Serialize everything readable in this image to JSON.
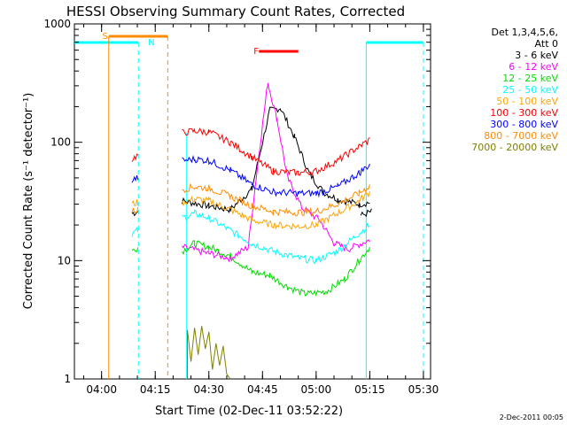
{
  "chart_data": {
    "type": "line",
    "title": "HESSI Observing Summary Count Rates, Corrected",
    "xlabel": "Start Time (02-Dec-11 03:52:22)",
    "ylabel": "Corrected Count Rate (s⁻¹ detector⁻¹)",
    "y_scale": "log",
    "ylim": [
      1,
      1000
    ],
    "y_ticks": [
      {
        "v": 1,
        "label": "1"
      },
      {
        "v": 10,
        "label": "10"
      },
      {
        "v": 100,
        "label": "100"
      },
      {
        "v": 1000,
        "label": "1000"
      }
    ],
    "xlim_min": [
      232.4,
      332
    ],
    "x_ticks": [
      {
        "v": 240,
        "label": "04:00"
      },
      {
        "v": 255,
        "label": "04:15"
      },
      {
        "v": 270,
        "label": "04:30"
      },
      {
        "v": 285,
        "label": "04:45"
      },
      {
        "v": 300,
        "label": "05:00"
      },
      {
        "v": 315,
        "label": "05:15"
      },
      {
        "v": 330,
        "label": "05:30"
      }
    ],
    "legend_header": [
      "Det 1,3,4,5,6,",
      "Att 0"
    ],
    "series": [
      {
        "name": "3 - 6 keV",
        "color": "#000000",
        "segments": [
          [
            [
              248.5,
              25
            ],
            [
              250.2,
              26
            ]
          ],
          [
            [
              262.5,
              32
            ],
            [
              270,
              29
            ],
            [
              276,
              27
            ],
            [
              282,
              40
            ],
            [
              287,
              185
            ],
            [
              290,
              195
            ],
            [
              294,
              110
            ],
            [
              298,
              55
            ],
            [
              302,
              38
            ],
            [
              306,
              33
            ],
            [
              312,
              30
            ],
            [
              315,
              31
            ]
          ],
          [
            [
              312.5,
              24
            ],
            [
              315.5,
              26
            ]
          ]
        ]
      },
      {
        "name": "6 - 12 keV",
        "color": "#ff00ff",
        "segments": [
          [
            [
              262.5,
              13
            ],
            [
              270,
              11.5
            ],
            [
              276,
              10.5
            ],
            [
              281,
              13
            ],
            [
              284,
              80
            ],
            [
              286.5,
              320
            ],
            [
              289,
              160
            ],
            [
              292,
              50
            ],
            [
              296,
              28
            ],
            [
              301,
              22
            ],
            [
              305,
              14
            ],
            [
              309,
              12.5
            ],
            [
              315,
              15
            ]
          ]
        ]
      },
      {
        "name": "12 - 25 keV",
        "color": "#00dd00",
        "segments": [
          [
            [
              248.5,
              12
            ],
            [
              250.2,
              13
            ]
          ],
          [
            [
              262.5,
              12
            ],
            [
              266,
              14
            ],
            [
              270,
              13
            ],
            [
              276,
              11
            ],
            [
              282,
              8
            ],
            [
              287,
              7.5
            ],
            [
              292,
              6
            ],
            [
              297,
              5.2
            ],
            [
              303,
              5.5
            ],
            [
              308,
              7
            ],
            [
              312,
              10
            ],
            [
              315,
              13
            ]
          ]
        ]
      },
      {
        "name": "25 - 50 keV",
        "color": "#00ffff",
        "segments": [
          [
            [
              248.5,
              17
            ],
            [
              250.2,
              18
            ]
          ],
          [
            [
              262.5,
              23
            ],
            [
              266,
              25
            ],
            [
              270,
              23
            ],
            [
              276,
              18
            ],
            [
              282,
              14
            ],
            [
              288,
              12
            ],
            [
              295,
              10.5
            ],
            [
              300,
              10
            ],
            [
              306,
              12
            ],
            [
              312,
              17
            ],
            [
              315,
              20
            ]
          ]
        ]
      },
      {
        "name": "50 - 100 keV",
        "color": "#ffa500",
        "segments": [
          [
            [
              248.5,
              30
            ],
            [
              250.2,
              31
            ]
          ],
          [
            [
              262.5,
              31
            ],
            [
              266,
              33
            ],
            [
              270,
              32
            ],
            [
              276,
              27
            ],
            [
              282,
              22
            ],
            [
              288,
              20
            ],
            [
              295,
              19.5
            ],
            [
              300,
              20
            ],
            [
              306,
              25
            ],
            [
              312,
              32
            ],
            [
              315,
              38
            ]
          ]
        ]
      },
      {
        "name": "100 - 300 keV",
        "color": "#ff0000",
        "segments": [
          [
            [
              248.5,
              72
            ],
            [
              250.2,
              78
            ]
          ],
          [
            [
              262.5,
              120
            ],
            [
              266,
              125
            ],
            [
              270,
              122
            ],
            [
              276,
              100
            ],
            [
              282,
              75
            ],
            [
              288,
              57
            ],
            [
              295,
              55
            ],
            [
              300,
              57
            ],
            [
              306,
              70
            ],
            [
              312,
              92
            ],
            [
              315,
              105
            ]
          ]
        ]
      },
      {
        "name": "300 - 800 keV",
        "color": "#0000ff",
        "segments": [
          [
            [
              248.5,
              48
            ],
            [
              250.2,
              50
            ]
          ],
          [
            [
              262.5,
              70
            ],
            [
              266,
              72
            ],
            [
              270,
              70
            ],
            [
              276,
              58
            ],
            [
              282,
              44
            ],
            [
              288,
              38
            ],
            [
              295,
              37
            ],
            [
              300,
              37
            ],
            [
              306,
              42
            ],
            [
              312,
              55
            ],
            [
              315,
              65
            ]
          ]
        ]
      },
      {
        "name": "800 - 7000 keV",
        "color": "#ff8c00",
        "segments": [
          [
            [
              248.5,
              26
            ],
            [
              250.2,
              27
            ]
          ],
          [
            [
              262.5,
              40
            ],
            [
              266,
              42
            ],
            [
              270,
              41
            ],
            [
              276,
              35
            ],
            [
              282,
              29
            ],
            [
              288,
              26
            ],
            [
              295,
              25.5
            ],
            [
              300,
              26
            ],
            [
              306,
              30
            ],
            [
              312,
              37
            ],
            [
              315,
              43
            ]
          ]
        ]
      },
      {
        "name": "7000 - 20000 keV",
        "color": "#808000",
        "segments": [
          [
            [
              264,
              1
            ],
            [
              264,
              2.6
            ],
            [
              265,
              1.4
            ],
            [
              266,
              2.7
            ],
            [
              267,
              1.6
            ],
            [
              268,
              2.8
            ],
            [
              269,
              1.8
            ],
            [
              270,
              2.5
            ],
            [
              271,
              1.2
            ],
            [
              272,
              2.0
            ],
            [
              273,
              1.3
            ],
            [
              274,
              1.9
            ],
            [
              275,
              1.1
            ],
            [
              276,
              1.0
            ]
          ]
        ]
      }
    ],
    "attenuator_color": "#ff8c00",
    "eclipse_color": "#00ffff",
    "flare_color": "#ff0000",
    "flags": [
      {
        "label": "S",
        "color": "#ff8c00"
      },
      {
        "label": "N",
        "color": "#00ffff"
      },
      {
        "label": "F",
        "color": "#ff0000"
      }
    ],
    "footer_date": "2-Dec-2011 00:05"
  }
}
